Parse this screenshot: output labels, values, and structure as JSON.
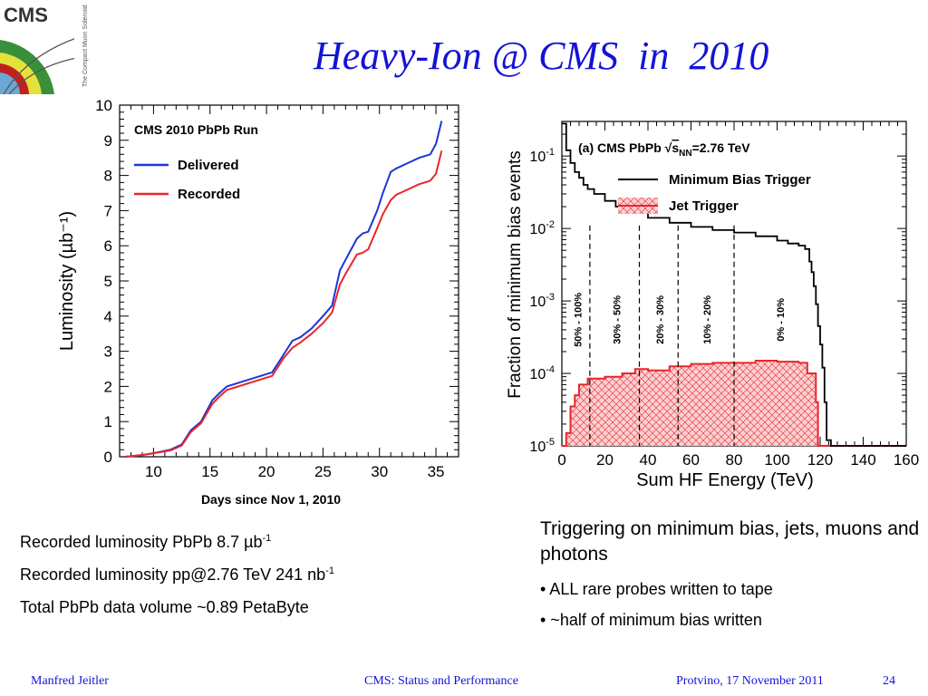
{
  "slide": {
    "title": "Heavy-Ion @ CMS  in  2010",
    "logo_text": "CMS",
    "logo_subtext": "The Compact Muon Solenoid",
    "footer": {
      "author": "Manfred Jeitler",
      "center": "CMS: Status and Performance",
      "place_date": "Protvino, 17 November 2011",
      "page": "24"
    }
  },
  "captions": {
    "left": [
      {
        "text": "Recorded luminosity PbPb 8.7 µb",
        "sup": "-1"
      },
      {
        "text": "Recorded luminosity pp@2.76 TeV 241 nb",
        "sup": "-1"
      },
      {
        "text": "Total PbPb data volume ~0.89 PetaByte",
        "sup": ""
      }
    ],
    "right_heading": "Triggering on minimum bias, jets, muons and photons",
    "right_bullets": [
      "• ALL rare probes written to tape",
      "• ~half of minimum bias written"
    ]
  },
  "chart_data": [
    {
      "type": "line",
      "title": "CMS 2010 PbPb Run",
      "xlabel": "Days since Nov 1, 2010",
      "ylabel": "Luminosity (µb⁻¹)",
      "xlim": [
        7,
        37
      ],
      "ylim": [
        0,
        10
      ],
      "xticks": [
        10,
        15,
        20,
        25,
        30,
        35
      ],
      "yticks": [
        0,
        1,
        2,
        3,
        4,
        5,
        6,
        7,
        8,
        9,
        10
      ],
      "legend": "top-left",
      "series": [
        {
          "name": "Delivered",
          "color": "#1f35d8",
          "points": [
            [
              7.5,
              0
            ],
            [
              9,
              0.05
            ],
            [
              10,
              0.1
            ],
            [
              11.5,
              0.2
            ],
            [
              12.5,
              0.35
            ],
            [
              13.3,
              0.75
            ],
            [
              14.2,
              1.0
            ],
            [
              15.2,
              1.6
            ],
            [
              15.8,
              1.8
            ],
            [
              16.5,
              2.0
            ],
            [
              18,
              2.15
            ],
            [
              20,
              2.35
            ],
            [
              20.5,
              2.4
            ],
            [
              21.5,
              2.9
            ],
            [
              22.3,
              3.3
            ],
            [
              23,
              3.4
            ],
            [
              24,
              3.65
            ],
            [
              25,
              4.0
            ],
            [
              25.8,
              4.3
            ],
            [
              26.5,
              5.3
            ],
            [
              27,
              5.6
            ],
            [
              28,
              6.2
            ],
            [
              28.5,
              6.35
            ],
            [
              29,
              6.4
            ],
            [
              29.8,
              7.0
            ],
            [
              30.3,
              7.5
            ],
            [
              31,
              8.1
            ],
            [
              31.5,
              8.2
            ],
            [
              32.5,
              8.35
            ],
            [
              33.5,
              8.5
            ],
            [
              34.5,
              8.6
            ],
            [
              35,
              8.9
            ],
            [
              35.5,
              9.55
            ]
          ]
        },
        {
          "name": "Recorded",
          "color": "#e8262b",
          "points": [
            [
              7.5,
              0
            ],
            [
              9,
              0.05
            ],
            [
              10,
              0.1
            ],
            [
              11.5,
              0.18
            ],
            [
              12.5,
              0.32
            ],
            [
              13.3,
              0.7
            ],
            [
              14.2,
              0.95
            ],
            [
              15.2,
              1.5
            ],
            [
              15.8,
              1.7
            ],
            [
              16.5,
              1.9
            ],
            [
              18,
              2.05
            ],
            [
              20,
              2.25
            ],
            [
              20.5,
              2.3
            ],
            [
              21.5,
              2.8
            ],
            [
              22.3,
              3.1
            ],
            [
              23,
              3.25
            ],
            [
              24,
              3.5
            ],
            [
              25,
              3.8
            ],
            [
              25.8,
              4.1
            ],
            [
              26.5,
              4.9
            ],
            [
              27,
              5.2
            ],
            [
              28,
              5.75
            ],
            [
              28.5,
              5.8
            ],
            [
              29,
              5.9
            ],
            [
              29.8,
              6.5
            ],
            [
              30.3,
              6.9
            ],
            [
              31,
              7.3
            ],
            [
              31.5,
              7.45
            ],
            [
              32.5,
              7.6
            ],
            [
              33.5,
              7.75
            ],
            [
              34.5,
              7.85
            ],
            [
              35,
              8.05
            ],
            [
              35.5,
              8.7
            ]
          ]
        }
      ]
    },
    {
      "type": "line",
      "title": "(a)  CMS PbPb √s_NN=2.76 TeV",
      "title_parts": {
        "panel": "(a)",
        "pre": "CMS PbPb",
        "sqrt_sym": "√",
        "s": "s",
        "nn": "NN",
        "energy": "=2.76 TeV"
      },
      "xlabel": "Sum HF Energy (TeV)",
      "ylabel": "Fraction of minimum bias events",
      "xlim": [
        0,
        160
      ],
      "ylim": [
        1e-05,
        0.3
      ],
      "y_scale": "log",
      "xticks": [
        0,
        20,
        40,
        60,
        80,
        100,
        120,
        140,
        160
      ],
      "yticks": [
        {
          "value": 0.1,
          "label": "10",
          "exp": "-1"
        },
        {
          "value": 0.01,
          "label": "10",
          "exp": "-2"
        },
        {
          "value": 0.001,
          "label": "10",
          "exp": "-3"
        },
        {
          "value": 0.0001,
          "label": "10",
          "exp": "-4"
        },
        {
          "value": 1e-05,
          "label": "10",
          "exp": "-5"
        }
      ],
      "legend": "top-right",
      "centrality_lines": [
        13,
        36,
        54,
        80
      ],
      "centrality_bins": [
        {
          "label": "50% - 100%",
          "x": 7
        },
        {
          "label": "30% - 50%",
          "x": 25
        },
        {
          "label": "20% - 30%",
          "x": 45
        },
        {
          "label": "10% - 20%",
          "x": 67
        },
        {
          "label": "0% - 10%",
          "x": 101
        }
      ],
      "series": [
        {
          "name": "Minimum Bias Trigger",
          "color": "#000000",
          "style": "step",
          "points": [
            [
              0,
              0.28
            ],
            [
              1,
              0.28
            ],
            [
              2,
              0.12
            ],
            [
              4,
              0.08
            ],
            [
              6,
              0.06
            ],
            [
              8,
              0.05
            ],
            [
              10,
              0.04
            ],
            [
              12,
              0.035
            ],
            [
              15,
              0.03
            ],
            [
              20,
              0.024
            ],
            [
              25,
              0.02
            ],
            [
              30,
              0.017
            ],
            [
              40,
              0.014
            ],
            [
              50,
              0.012
            ],
            [
              60,
              0.0105
            ],
            [
              70,
              0.0095
            ],
            [
              80,
              0.0088
            ],
            [
              90,
              0.0078
            ],
            [
              100,
              0.0068
            ],
            [
              105,
              0.0062
            ],
            [
              110,
              0.0058
            ],
            [
              113,
              0.0052
            ],
            [
              115,
              0.0035
            ],
            [
              116,
              0.0025
            ],
            [
              117,
              0.0016
            ],
            [
              118,
              0.0009
            ],
            [
              119,
              0.00045
            ],
            [
              120,
              0.00025
            ],
            [
              121,
              0.00012
            ],
            [
              122,
              4e-05
            ],
            [
              123,
              1.2e-05
            ],
            [
              125,
              1e-05
            ],
            [
              160,
              1e-05
            ]
          ]
        },
        {
          "name": "Jet Trigger",
          "color": "#e8262b",
          "style": "filled-step-hatched",
          "points": [
            [
              0,
              1e-05
            ],
            [
              2,
              1.5e-05
            ],
            [
              4,
              3.5e-05
            ],
            [
              6,
              5e-05
            ],
            [
              8,
              7e-05
            ],
            [
              12,
              8.5e-05
            ],
            [
              20,
              9e-05
            ],
            [
              28,
              0.0001
            ],
            [
              34,
              0.000115
            ],
            [
              40,
              0.00011
            ],
            [
              50,
              0.000125
            ],
            [
              60,
              0.000135
            ],
            [
              70,
              0.00014
            ],
            [
              80,
              0.00014
            ],
            [
              90,
              0.00015
            ],
            [
              100,
              0.000145
            ],
            [
              110,
              0.00014
            ],
            [
              114,
              0.0001
            ],
            [
              118,
              4e-05
            ],
            [
              119,
              1e-05
            ],
            [
              160,
              1e-05
            ]
          ]
        }
      ]
    }
  ]
}
